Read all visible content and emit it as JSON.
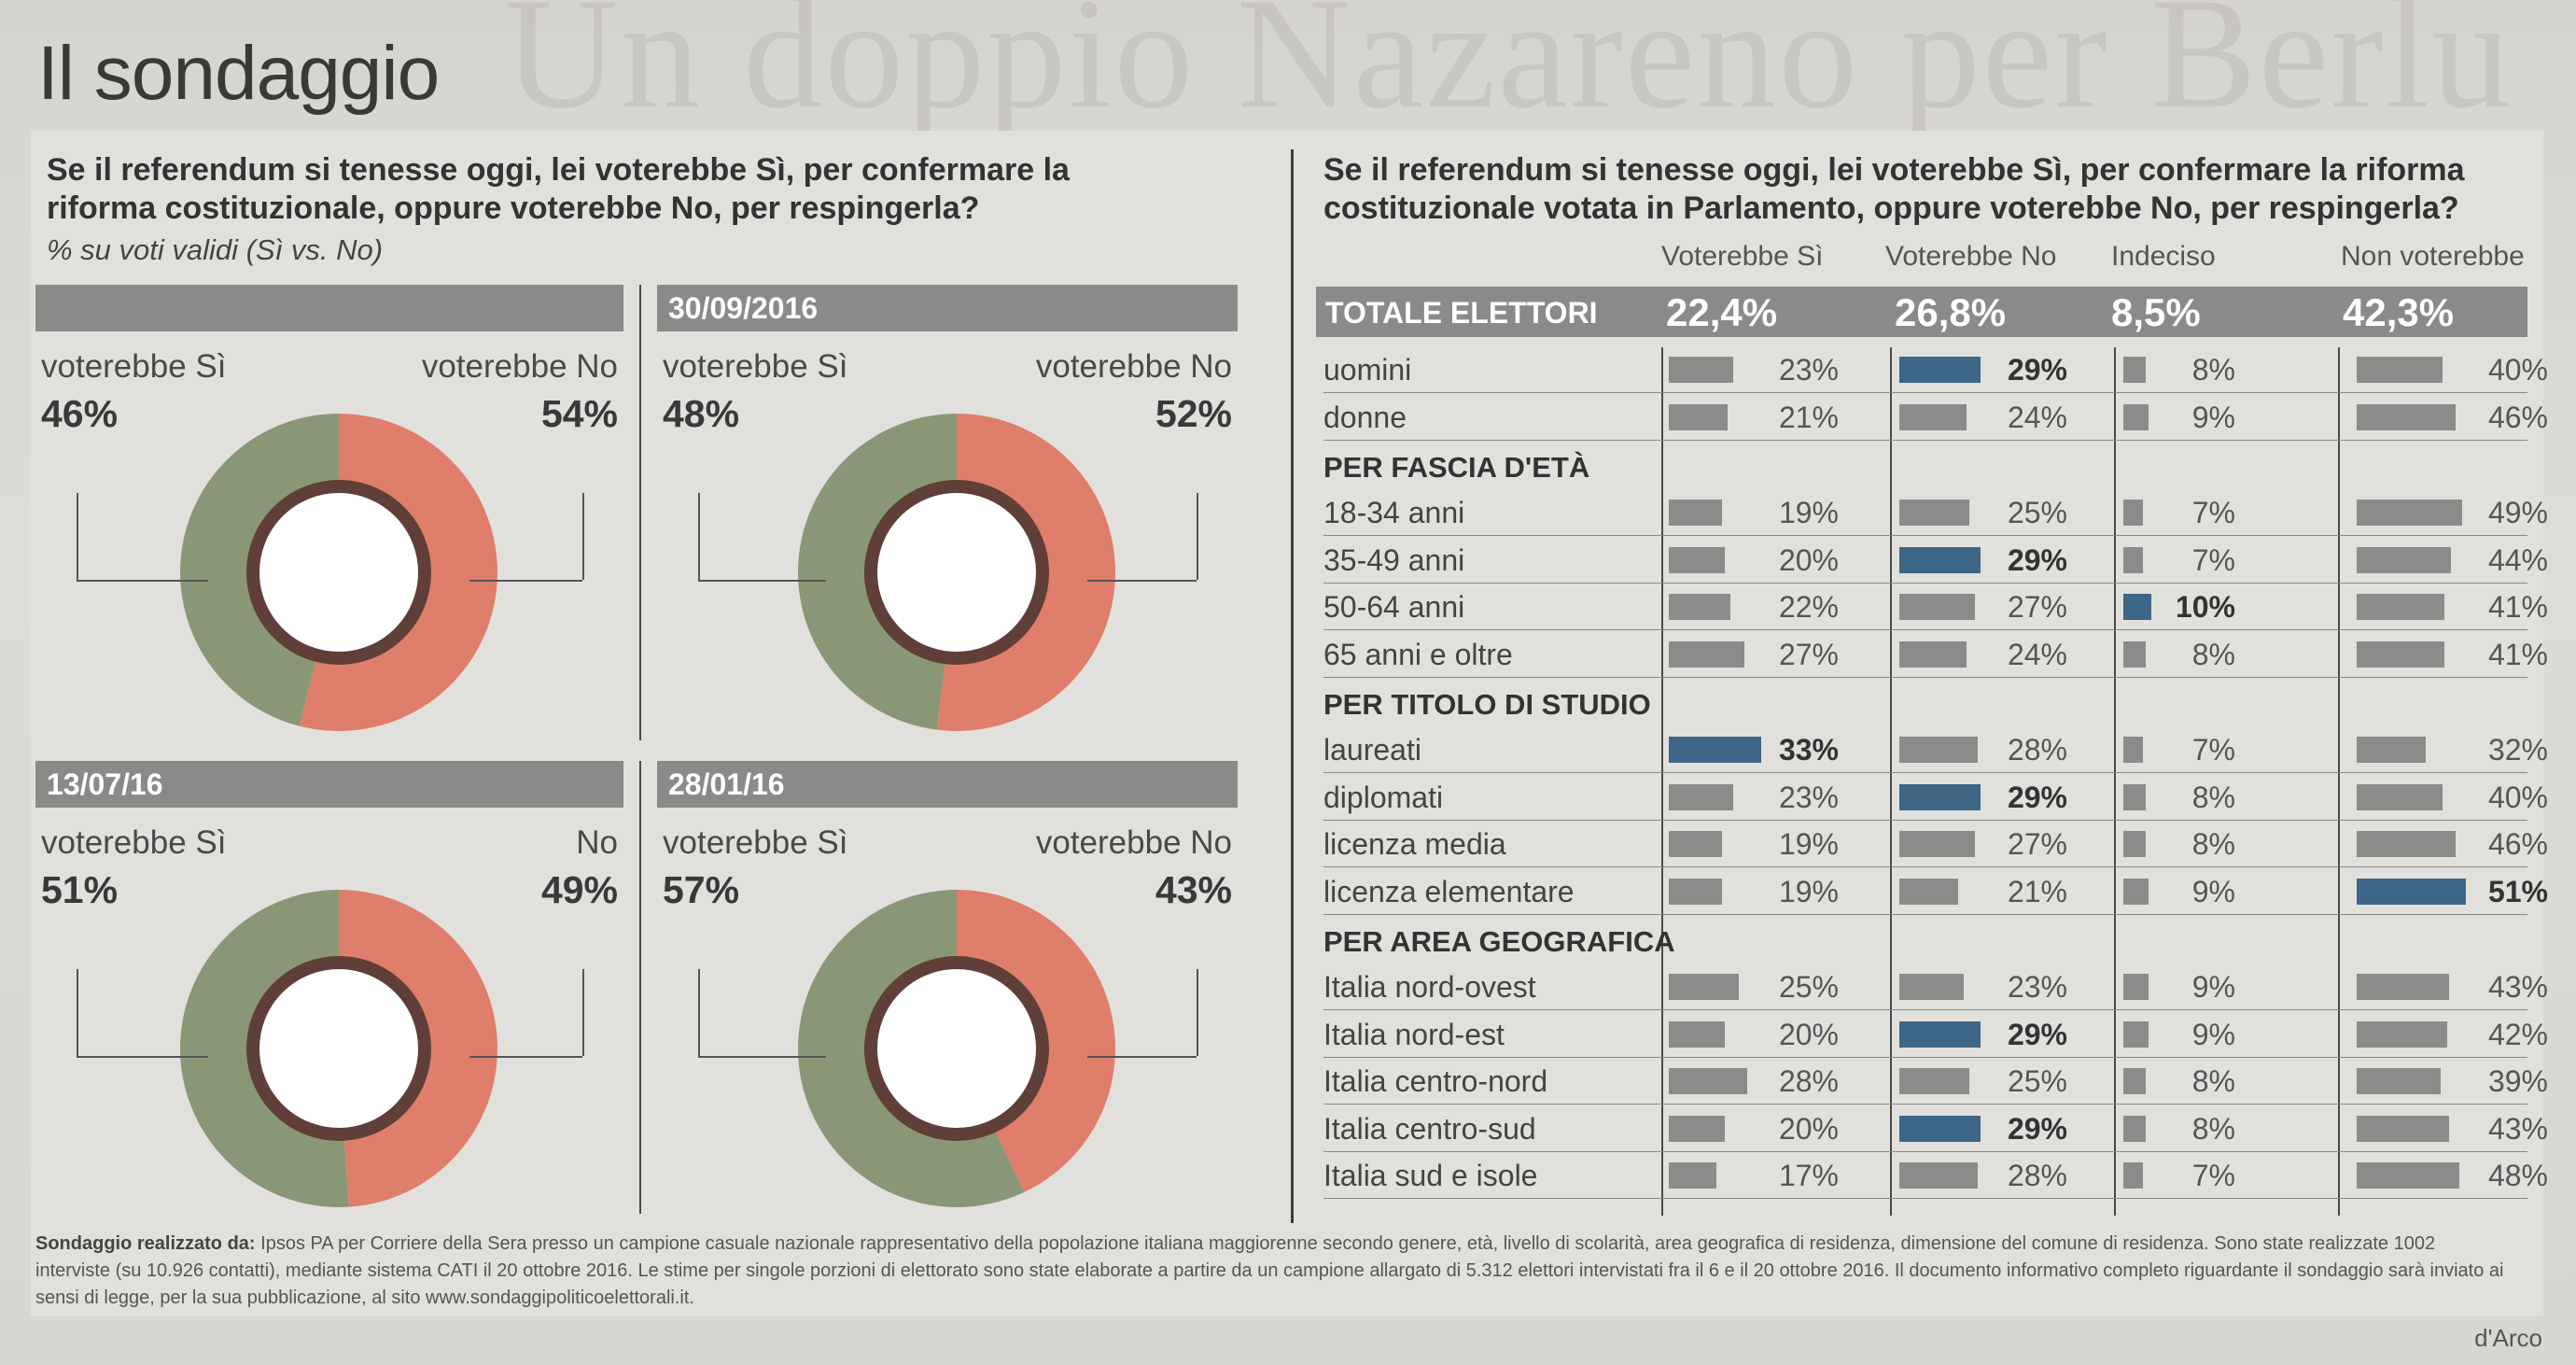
{
  "page_title": "Il sondaggio",
  "left_question": "Se il referendum si tenesse oggi, lei voterebbe Sì, per confermare la riforma costituzionale, oppure voterebbe No, per respingerla?",
  "left_subtitle": "% su voti validi (Sì vs. No)",
  "right_question": "Se il referendum si tenesse oggi, lei voterebbe Sì, per confermare la riforma costituzionale votata in Parlamento, oppure voterebbe No, per respingerla?",
  "footer_label": "Sondaggio realizzato da:",
  "footer_text": "Ipsos PA per Corriere della Sera presso un campione casuale nazionale rappresentativo della popolazione italiana maggiorenne secondo genere, età, livello di scolarità, area geografica di residenza, dimensione del comune di residenza. Sono state realizzate 1002 interviste (su 10.926 contatti), mediante sistema CATI il 20 ottobre 2016. Le stime per singole porzioni di elettorato sono state elaborate a partire da un campione allargato di 5.312 elettori intervistati fra il 6 e il 20 ottobre 2016. Il documento informativo completo riguardante il sondaggio sarà inviato ai sensi di legge, per la sua pubblicazione, al sito www.sondaggipoliticoelettorali.it.",
  "credit": "d'Arco",
  "colors": {
    "si": "#8a9777",
    "no": "#df7e6b",
    "ring": "#5f3f38",
    "highlight": "#3e6686",
    "bar": "#8d8a8a"
  },
  "chart_data": [
    {
      "type": "pie",
      "date": "",
      "si_label": "voterebbe Sì",
      "no_label": "voterebbe No",
      "si_pct": "46%",
      "no_pct": "54%",
      "values": [
        46,
        54
      ]
    },
    {
      "type": "pie",
      "date": "30/09/2016",
      "si_label": "voterebbe Sì",
      "no_label": "voterebbe No",
      "si_pct": "48%",
      "no_pct": "52%",
      "values": [
        48,
        52
      ]
    },
    {
      "type": "pie",
      "date": "13/07/16",
      "si_label": "voterebbe Sì",
      "no_label": "No",
      "si_pct": "51%",
      "no_pct": "49%",
      "values": [
        51,
        49
      ]
    },
    {
      "type": "pie",
      "date": "28/01/16",
      "si_label": "voterebbe Sì",
      "no_label": "voterebbe No",
      "si_pct": "57%",
      "no_pct": "43%",
      "values": [
        57,
        43
      ]
    },
    {
      "type": "table",
      "columns": [
        "Voterebbe Sì",
        "Voterebbe No",
        "Indeciso",
        "Non voterebbe"
      ],
      "total": {
        "label": "TOTALE ELETTORI",
        "values": [
          "22,4%",
          "26,8%",
          "8,5%",
          "42,3%"
        ]
      },
      "sections": [
        {
          "heading": "",
          "rows": [
            {
              "label": "uomini",
              "values": [
                23,
                29,
                8,
                40
              ],
              "highlight": [
                false,
                true,
                false,
                false
              ]
            },
            {
              "label": "donne",
              "values": [
                21,
                24,
                9,
                46
              ],
              "highlight": [
                false,
                false,
                false,
                false
              ]
            }
          ]
        },
        {
          "heading": "PER FASCIA D'ETÀ",
          "rows": [
            {
              "label": "18-34 anni",
              "values": [
                19,
                25,
                7,
                49
              ],
              "highlight": [
                false,
                false,
                false,
                false
              ]
            },
            {
              "label": "35-49 anni",
              "values": [
                20,
                29,
                7,
                44
              ],
              "highlight": [
                false,
                true,
                false,
                false
              ]
            },
            {
              "label": "50-64 anni",
              "values": [
                22,
                27,
                10,
                41
              ],
              "highlight": [
                false,
                false,
                true,
                false
              ]
            },
            {
              "label": "65 anni e oltre",
              "values": [
                27,
                24,
                8,
                41
              ],
              "highlight": [
                false,
                false,
                false,
                false
              ]
            }
          ]
        },
        {
          "heading": "PER TITOLO DI STUDIO",
          "rows": [
            {
              "label": "laureati",
              "values": [
                33,
                28,
                7,
                32
              ],
              "highlight": [
                true,
                false,
                false,
                false
              ]
            },
            {
              "label": "diplomati",
              "values": [
                23,
                29,
                8,
                40
              ],
              "highlight": [
                false,
                true,
                false,
                false
              ]
            },
            {
              "label": "licenza media",
              "values": [
                19,
                27,
                8,
                46
              ],
              "highlight": [
                false,
                false,
                false,
                false
              ]
            },
            {
              "label": "licenza elementare",
              "values": [
                19,
                21,
                9,
                51
              ],
              "highlight": [
                false,
                false,
                false,
                true
              ]
            }
          ]
        },
        {
          "heading": "PER AREA GEOGRAFICA",
          "rows": [
            {
              "label": "Italia nord-ovest",
              "values": [
                25,
                23,
                9,
                43
              ],
              "highlight": [
                false,
                false,
                false,
                false
              ]
            },
            {
              "label": "Italia nord-est",
              "values": [
                20,
                29,
                9,
                42
              ],
              "highlight": [
                false,
                true,
                false,
                false
              ]
            },
            {
              "label": "Italia centro-nord",
              "values": [
                28,
                25,
                8,
                39
              ],
              "highlight": [
                false,
                false,
                false,
                false
              ]
            },
            {
              "label": "Italia centro-sud",
              "values": [
                20,
                29,
                8,
                43
              ],
              "highlight": [
                false,
                true,
                false,
                false
              ]
            },
            {
              "label": "Italia sud e isole",
              "values": [
                17,
                28,
                7,
                48
              ],
              "highlight": [
                false,
                false,
                false,
                false
              ]
            }
          ]
        }
      ]
    }
  ]
}
